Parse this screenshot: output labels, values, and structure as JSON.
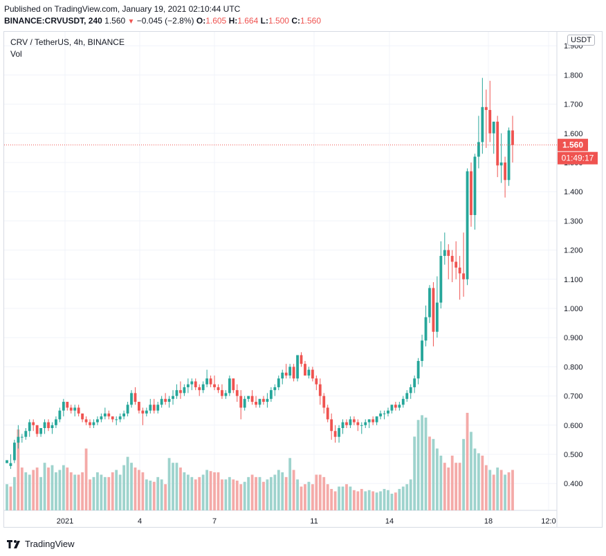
{
  "header": {
    "published": "Published on TradingView.com, January 19, 2021 02:10:44 UTC",
    "symbol": "BINANCE:CRVUSDT, 240",
    "last": "1.560",
    "change": "−0.045 (−2.8%)",
    "o_label": "O:",
    "o_value": "1.605",
    "h_label": "H:",
    "h_value": "1.664",
    "l_label": "L:",
    "l_value": "1.500",
    "c_label": "C:",
    "c_value": "1.560"
  },
  "legend": {
    "title": "CRV / TetherUS, 4h, BINANCE",
    "indicator": "Vol"
  },
  "currency_badge": "USDT",
  "price_tag": {
    "price": "1.560",
    "countdown": "01:49:17",
    "color": "#ef5350"
  },
  "footer": {
    "brand": "TradingView"
  },
  "colors": {
    "up": "#26a69a",
    "down": "#ef5350",
    "up_vol": "#9ed3cd",
    "down_vol": "#f4aaa8",
    "grid": "#f0f3fa"
  },
  "chart_data": {
    "type": "candlestick",
    "title": "CRV / TetherUS, 4h, BINANCE",
    "y_ticks": [
      "0.400",
      "0.500",
      "0.600",
      "0.700",
      "0.800",
      "0.900",
      "1.000",
      "1.100",
      "1.200",
      "1.300",
      "1.400",
      "1.500",
      "1.600",
      "1.700",
      "1.800",
      "1.900"
    ],
    "ylim": [
      0.31,
      1.96
    ],
    "x_ticks": [
      "2021",
      "4",
      "7",
      "11",
      "14",
      "18",
      "12:0"
    ],
    "last_price": 1.56,
    "candles": [
      [
        0.47,
        0.48,
        0.47,
        0.48
      ],
      [
        0.46,
        0.5,
        0.45,
        0.47
      ],
      [
        0.48,
        0.55,
        0.47,
        0.54
      ],
      [
        0.54,
        0.6,
        0.52,
        0.56
      ],
      [
        0.56,
        0.57,
        0.54,
        0.56
      ],
      [
        0.56,
        0.59,
        0.55,
        0.58
      ],
      [
        0.58,
        0.62,
        0.56,
        0.61
      ],
      [
        0.61,
        0.62,
        0.58,
        0.6
      ],
      [
        0.6,
        0.6,
        0.56,
        0.57
      ],
      [
        0.57,
        0.59,
        0.56,
        0.59
      ],
      [
        0.59,
        0.62,
        0.57,
        0.61
      ],
      [
        0.61,
        0.62,
        0.58,
        0.59
      ],
      [
        0.59,
        0.61,
        0.57,
        0.6
      ],
      [
        0.6,
        0.63,
        0.59,
        0.62
      ],
      [
        0.62,
        0.66,
        0.61,
        0.65
      ],
      [
        0.65,
        0.69,
        0.63,
        0.68
      ],
      [
        0.68,
        0.68,
        0.65,
        0.66
      ],
      [
        0.66,
        0.67,
        0.64,
        0.65
      ],
      [
        0.65,
        0.67,
        0.63,
        0.66
      ],
      [
        0.66,
        0.67,
        0.63,
        0.64
      ],
      [
        0.64,
        0.64,
        0.61,
        0.62
      ],
      [
        0.62,
        0.63,
        0.6,
        0.61
      ],
      [
        0.61,
        0.62,
        0.59,
        0.6
      ],
      [
        0.6,
        0.62,
        0.59,
        0.61
      ],
      [
        0.61,
        0.63,
        0.6,
        0.62
      ],
      [
        0.62,
        0.64,
        0.61,
        0.63
      ],
      [
        0.63,
        0.66,
        0.62,
        0.64
      ],
      [
        0.64,
        0.65,
        0.62,
        0.63
      ],
      [
        0.63,
        0.63,
        0.61,
        0.62
      ],
      [
        0.62,
        0.63,
        0.6,
        0.62
      ],
      [
        0.62,
        0.64,
        0.61,
        0.63
      ],
      [
        0.63,
        0.65,
        0.62,
        0.64
      ],
      [
        0.64,
        0.68,
        0.63,
        0.67
      ],
      [
        0.67,
        0.72,
        0.66,
        0.71
      ],
      [
        0.71,
        0.73,
        0.67,
        0.68
      ],
      [
        0.68,
        0.68,
        0.64,
        0.65
      ],
      [
        0.65,
        0.66,
        0.6,
        0.64
      ],
      [
        0.64,
        0.66,
        0.63,
        0.65
      ],
      [
        0.65,
        0.69,
        0.64,
        0.67
      ],
      [
        0.67,
        0.69,
        0.64,
        0.65
      ],
      [
        0.65,
        0.68,
        0.64,
        0.67
      ],
      [
        0.67,
        0.7,
        0.66,
        0.69
      ],
      [
        0.69,
        0.71,
        0.67,
        0.68
      ],
      [
        0.68,
        0.7,
        0.66,
        0.69
      ],
      [
        0.69,
        0.72,
        0.67,
        0.7
      ],
      [
        0.7,
        0.74,
        0.69,
        0.72
      ],
      [
        0.72,
        0.75,
        0.69,
        0.71
      ],
      [
        0.71,
        0.74,
        0.7,
        0.73
      ],
      [
        0.73,
        0.76,
        0.71,
        0.74
      ],
      [
        0.74,
        0.76,
        0.72,
        0.75
      ],
      [
        0.75,
        0.76,
        0.72,
        0.73
      ],
      [
        0.73,
        0.74,
        0.7,
        0.72
      ],
      [
        0.72,
        0.75,
        0.71,
        0.74
      ],
      [
        0.74,
        0.79,
        0.73,
        0.76
      ],
      [
        0.76,
        0.77,
        0.73,
        0.74
      ],
      [
        0.74,
        0.77,
        0.72,
        0.73
      ],
      [
        0.73,
        0.74,
        0.71,
        0.72
      ],
      [
        0.72,
        0.74,
        0.69,
        0.7
      ],
      [
        0.7,
        0.72,
        0.69,
        0.71
      ],
      [
        0.71,
        0.77,
        0.7,
        0.76
      ],
      [
        0.76,
        0.76,
        0.71,
        0.72
      ],
      [
        0.72,
        0.74,
        0.68,
        0.7
      ],
      [
        0.7,
        0.72,
        0.62,
        0.66
      ],
      [
        0.66,
        0.7,
        0.65,
        0.69
      ],
      [
        0.69,
        0.7,
        0.68,
        0.7
      ],
      [
        0.7,
        0.72,
        0.67,
        0.68
      ],
      [
        0.68,
        0.7,
        0.66,
        0.67
      ],
      [
        0.67,
        0.69,
        0.66,
        0.69
      ],
      [
        0.69,
        0.7,
        0.67,
        0.68
      ],
      [
        0.68,
        0.71,
        0.66,
        0.69
      ],
      [
        0.69,
        0.73,
        0.68,
        0.72
      ],
      [
        0.72,
        0.74,
        0.7,
        0.73
      ],
      [
        0.73,
        0.77,
        0.72,
        0.76
      ],
      [
        0.76,
        0.79,
        0.74,
        0.78
      ],
      [
        0.78,
        0.81,
        0.76,
        0.77
      ],
      [
        0.77,
        0.81,
        0.76,
        0.8
      ],
      [
        0.8,
        0.81,
        0.75,
        0.76
      ],
      [
        0.76,
        0.84,
        0.75,
        0.84
      ],
      [
        0.84,
        0.85,
        0.8,
        0.81
      ],
      [
        0.81,
        0.82,
        0.77,
        0.77
      ],
      [
        0.77,
        0.8,
        0.76,
        0.79
      ],
      [
        0.79,
        0.8,
        0.75,
        0.76
      ],
      [
        0.76,
        0.77,
        0.72,
        0.74
      ],
      [
        0.74,
        0.76,
        0.67,
        0.7
      ],
      [
        0.7,
        0.71,
        0.64,
        0.66
      ],
      [
        0.66,
        0.67,
        0.61,
        0.62
      ],
      [
        0.62,
        0.64,
        0.55,
        0.58
      ],
      [
        0.58,
        0.6,
        0.54,
        0.56
      ],
      [
        0.56,
        0.6,
        0.54,
        0.59
      ],
      [
        0.59,
        0.62,
        0.57,
        0.61
      ],
      [
        0.61,
        0.62,
        0.59,
        0.6
      ],
      [
        0.6,
        0.63,
        0.59,
        0.62
      ],
      [
        0.62,
        0.63,
        0.6,
        0.61
      ],
      [
        0.61,
        0.62,
        0.58,
        0.6
      ],
      [
        0.6,
        0.61,
        0.57,
        0.6
      ],
      [
        0.6,
        0.62,
        0.59,
        0.61
      ],
      [
        0.61,
        0.62,
        0.59,
        0.62
      ],
      [
        0.62,
        0.63,
        0.6,
        0.61
      ],
      [
        0.61,
        0.63,
        0.6,
        0.63
      ],
      [
        0.63,
        0.65,
        0.62,
        0.64
      ],
      [
        0.64,
        0.65,
        0.62,
        0.64
      ],
      [
        0.64,
        0.66,
        0.63,
        0.65
      ],
      [
        0.65,
        0.67,
        0.64,
        0.67
      ],
      [
        0.67,
        0.68,
        0.65,
        0.66
      ],
      [
        0.66,
        0.68,
        0.65,
        0.67
      ],
      [
        0.67,
        0.7,
        0.66,
        0.69
      ],
      [
        0.69,
        0.72,
        0.68,
        0.71
      ],
      [
        0.71,
        0.74,
        0.69,
        0.73
      ],
      [
        0.73,
        0.77,
        0.71,
        0.76
      ],
      [
        0.76,
        0.83,
        0.74,
        0.82
      ],
      [
        0.82,
        0.91,
        0.8,
        0.89
      ],
      [
        0.89,
        1.01,
        0.87,
        0.97
      ],
      [
        0.97,
        1.08,
        0.95,
        1.07
      ],
      [
        1.07,
        1.09,
        0.87,
        0.92
      ],
      [
        0.92,
        1.11,
        0.9,
        1.02
      ],
      [
        1.02,
        1.23,
        1.0,
        1.18
      ],
      [
        1.18,
        1.26,
        1.15,
        1.2
      ],
      [
        1.2,
        1.22,
        1.1,
        1.18
      ],
      [
        1.18,
        1.2,
        1.09,
        1.16
      ],
      [
        1.16,
        1.23,
        1.1,
        1.14
      ],
      [
        1.14,
        1.18,
        1.03,
        1.12
      ],
      [
        1.12,
        1.26,
        1.04,
        1.1
      ],
      [
        1.1,
        1.48,
        1.08,
        1.47
      ],
      [
        1.47,
        1.5,
        1.28,
        1.32
      ],
      [
        1.32,
        1.53,
        1.27,
        1.52
      ],
      [
        1.52,
        1.66,
        1.48,
        1.57
      ],
      [
        1.57,
        1.79,
        1.53,
        1.69
      ],
      [
        1.69,
        1.75,
        1.55,
        1.68
      ],
      [
        1.68,
        1.78,
        1.57,
        1.6
      ],
      [
        1.6,
        1.64,
        1.53,
        1.64
      ],
      [
        1.64,
        1.66,
        1.45,
        1.49
      ],
      [
        1.49,
        1.6,
        1.43,
        1.5
      ],
      [
        1.5,
        1.52,
        1.38,
        1.44
      ],
      [
        1.44,
        1.62,
        1.42,
        1.61
      ],
      [
        1.61,
        1.66,
        1.5,
        1.56
      ]
    ],
    "volume": {
      "y_ticks": [],
      "vmax": 1.0,
      "values": [
        0.22,
        0.2,
        0.28,
        0.68,
        0.36,
        0.32,
        0.3,
        0.34,
        0.36,
        0.28,
        0.4,
        0.36,
        0.38,
        0.32,
        0.34,
        0.38,
        0.36,
        0.32,
        0.3,
        0.3,
        0.32,
        0.52,
        0.26,
        0.28,
        0.32,
        0.3,
        0.28,
        0.28,
        0.32,
        0.34,
        0.3,
        0.38,
        0.45,
        0.4,
        0.36,
        0.34,
        0.32,
        0.26,
        0.25,
        0.24,
        0.28,
        0.26,
        0.22,
        0.44,
        0.4,
        0.4,
        0.36,
        0.32,
        0.3,
        0.28,
        0.26,
        0.28,
        0.3,
        0.34,
        0.33,
        0.32,
        0.32,
        0.26,
        0.26,
        0.28,
        0.26,
        0.25,
        0.22,
        0.24,
        0.28,
        0.3,
        0.28,
        0.28,
        0.24,
        0.26,
        0.28,
        0.3,
        0.34,
        0.32,
        0.28,
        0.44,
        0.34,
        0.26,
        0.2,
        0.22,
        0.24,
        0.22,
        0.3,
        0.3,
        0.28,
        0.22,
        0.18,
        0.16,
        0.2,
        0.2,
        0.22,
        0.2,
        0.17,
        0.16,
        0.18,
        0.16,
        0.17,
        0.16,
        0.15,
        0.16,
        0.18,
        0.17,
        0.14,
        0.15,
        0.18,
        0.2,
        0.22,
        0.26,
        0.62,
        0.76,
        0.8,
        0.78,
        0.62,
        0.6,
        0.52,
        0.46,
        0.4,
        0.36,
        0.46,
        0.4,
        0.4,
        0.6,
        0.82,
        0.66,
        0.52,
        0.48,
        0.46,
        0.38,
        0.34,
        0.3,
        0.36,
        0.34,
        0.3,
        0.32,
        0.34
      ]
    },
    "vol_colors_up": [
      true,
      false,
      true,
      false,
      false,
      true,
      true,
      false,
      false,
      true,
      true,
      false,
      true,
      true,
      true,
      true,
      false,
      false,
      true,
      false,
      false,
      false,
      false,
      true,
      true,
      true,
      true,
      false,
      false,
      true,
      true,
      true,
      true,
      true,
      false,
      false,
      false,
      true,
      true,
      false,
      true,
      true,
      false,
      true,
      true,
      true,
      false,
      true,
      true,
      true,
      false,
      false,
      true,
      true,
      false,
      false,
      false,
      false,
      true,
      true,
      false,
      false,
      false,
      true,
      true,
      false,
      false,
      true,
      false,
      true,
      true,
      true,
      true,
      true,
      false,
      true,
      false,
      true,
      false,
      false,
      true,
      false,
      false,
      false,
      false,
      false,
      false,
      false,
      true,
      true,
      false,
      true,
      false,
      false,
      false,
      true,
      true,
      false,
      true,
      true,
      true,
      true,
      true,
      false,
      true,
      true,
      true,
      true,
      true,
      true,
      true,
      true,
      false,
      true,
      true,
      true,
      false,
      false,
      false,
      false,
      false,
      true,
      false,
      true,
      true,
      true,
      false,
      false,
      true,
      false,
      true,
      false,
      true,
      false
    ],
    "vol_ylim": [
      0.0,
      1.0
    ]
  }
}
